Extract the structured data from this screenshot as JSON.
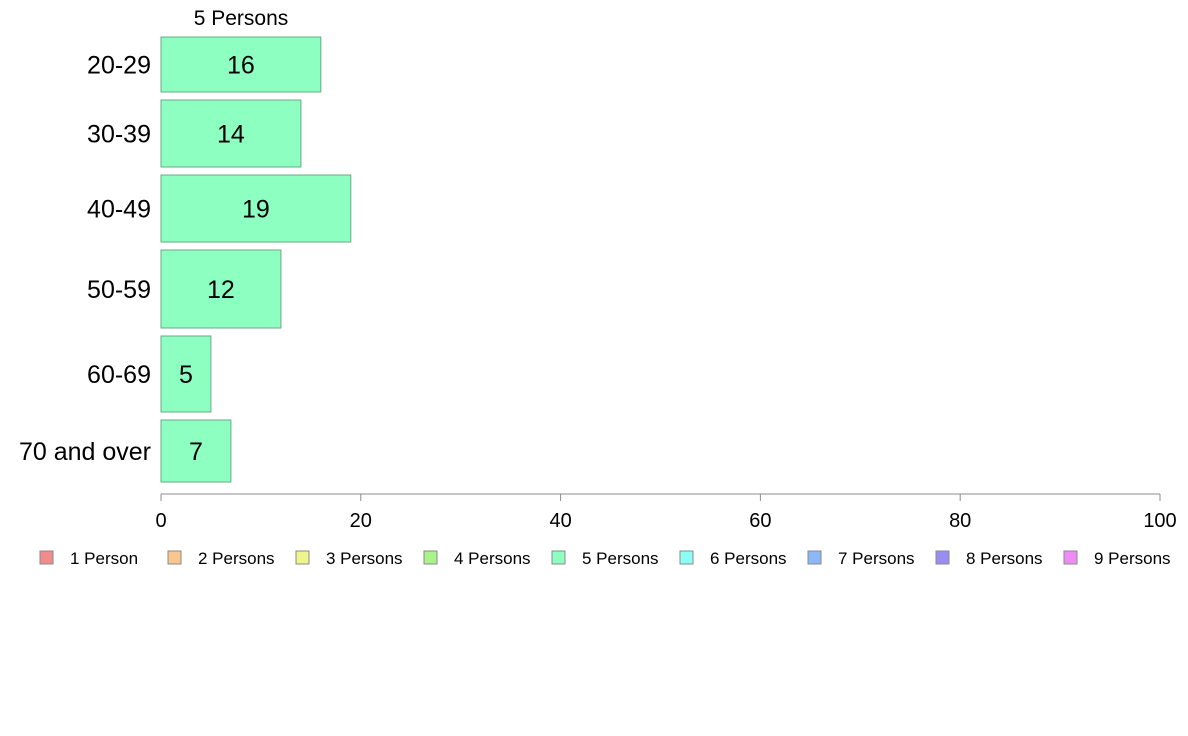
{
  "chart_data": {
    "type": "bar",
    "orientation": "horizontal",
    "series_title": "5 Persons",
    "categories": [
      "20-29",
      "30-39",
      "40-49",
      "50-59",
      "60-69",
      "70 and over"
    ],
    "series": [
      {
        "name": "5 Persons",
        "values": [
          16,
          14,
          19,
          12,
          5,
          7
        ],
        "color": "#8dffc0"
      }
    ],
    "value_labels": [
      "16",
      "14",
      "19",
      "12",
      "5",
      "7"
    ],
    "xlim": [
      0,
      100
    ],
    "xticks": [
      0,
      20,
      40,
      60,
      80,
      100
    ],
    "xtick_labels": [
      "0",
      "20",
      "40",
      "60",
      "80",
      "100"
    ],
    "grid": false,
    "legend_position": "bottom",
    "legend": [
      {
        "label": "1 Person",
        "color": "#f08c8c"
      },
      {
        "label": "2 Persons",
        "color": "#f7c88e"
      },
      {
        "label": "3 Persons",
        "color": "#eef58a"
      },
      {
        "label": "4 Persons",
        "color": "#a8f38a"
      },
      {
        "label": "5 Persons",
        "color": "#8dffc0"
      },
      {
        "label": "6 Persons",
        "color": "#8cfff5"
      },
      {
        "label": "7 Persons",
        "color": "#8cb8f7"
      },
      {
        "label": "8 Persons",
        "color": "#9b8cf3"
      },
      {
        "label": "9 Persons",
        "color": "#ee8cf5"
      }
    ]
  }
}
